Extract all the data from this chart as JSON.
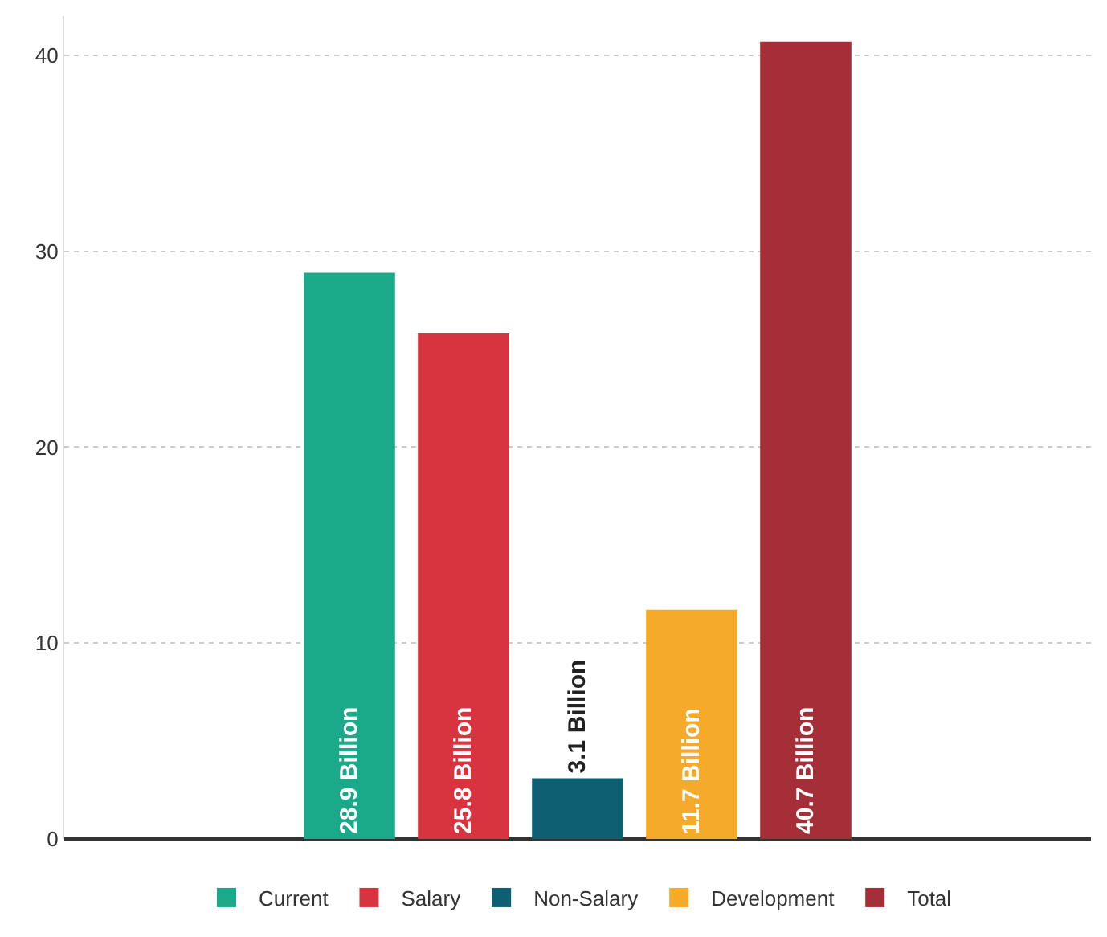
{
  "chart_data": {
    "type": "bar",
    "categories": [
      null,
      null,
      null,
      null,
      null,
      null,
      null,
      null,
      null
    ],
    "series": [
      {
        "name": "Current",
        "color": "#1aaa8a",
        "values": [
          null,
          null,
          28.9,
          null,
          null,
          null,
          null,
          null,
          null
        ],
        "value_labels": [
          null,
          null,
          "28.9 Billion",
          null,
          null,
          null,
          null,
          null,
          null
        ]
      },
      {
        "name": "Salary",
        "color": "#d8343f",
        "values": [
          null,
          null,
          null,
          25.8,
          null,
          null,
          null,
          null,
          null
        ],
        "value_labels": [
          null,
          null,
          null,
          "25.8 Billion",
          null,
          null,
          null,
          null,
          null
        ]
      },
      {
        "name": "Non-Salary",
        "color": "#0f5f73",
        "values": [
          null,
          null,
          null,
          null,
          3.1,
          null,
          null,
          null,
          null
        ],
        "value_labels": [
          null,
          null,
          null,
          null,
          "3.1 Billion",
          null,
          null,
          null,
          null
        ]
      },
      {
        "name": "Development",
        "color": "#f5aa2a",
        "values": [
          null,
          null,
          null,
          null,
          null,
          11.7,
          null,
          null,
          null
        ],
        "value_labels": [
          null,
          null,
          null,
          null,
          null,
          "11.7 Billion",
          null,
          null,
          null
        ]
      },
      {
        "name": "Total",
        "color": "#a52f38",
        "values": [
          null,
          null,
          null,
          null,
          null,
          null,
          40.7,
          null,
          null
        ],
        "value_labels": [
          null,
          null,
          null,
          null,
          null,
          null,
          "40.7 Billion",
          null,
          null
        ]
      }
    ],
    "ylim": [
      0,
      42
    ],
    "yticks": [
      0,
      10,
      20,
      30,
      40
    ],
    "grid": "y",
    "legend": "bottom"
  }
}
